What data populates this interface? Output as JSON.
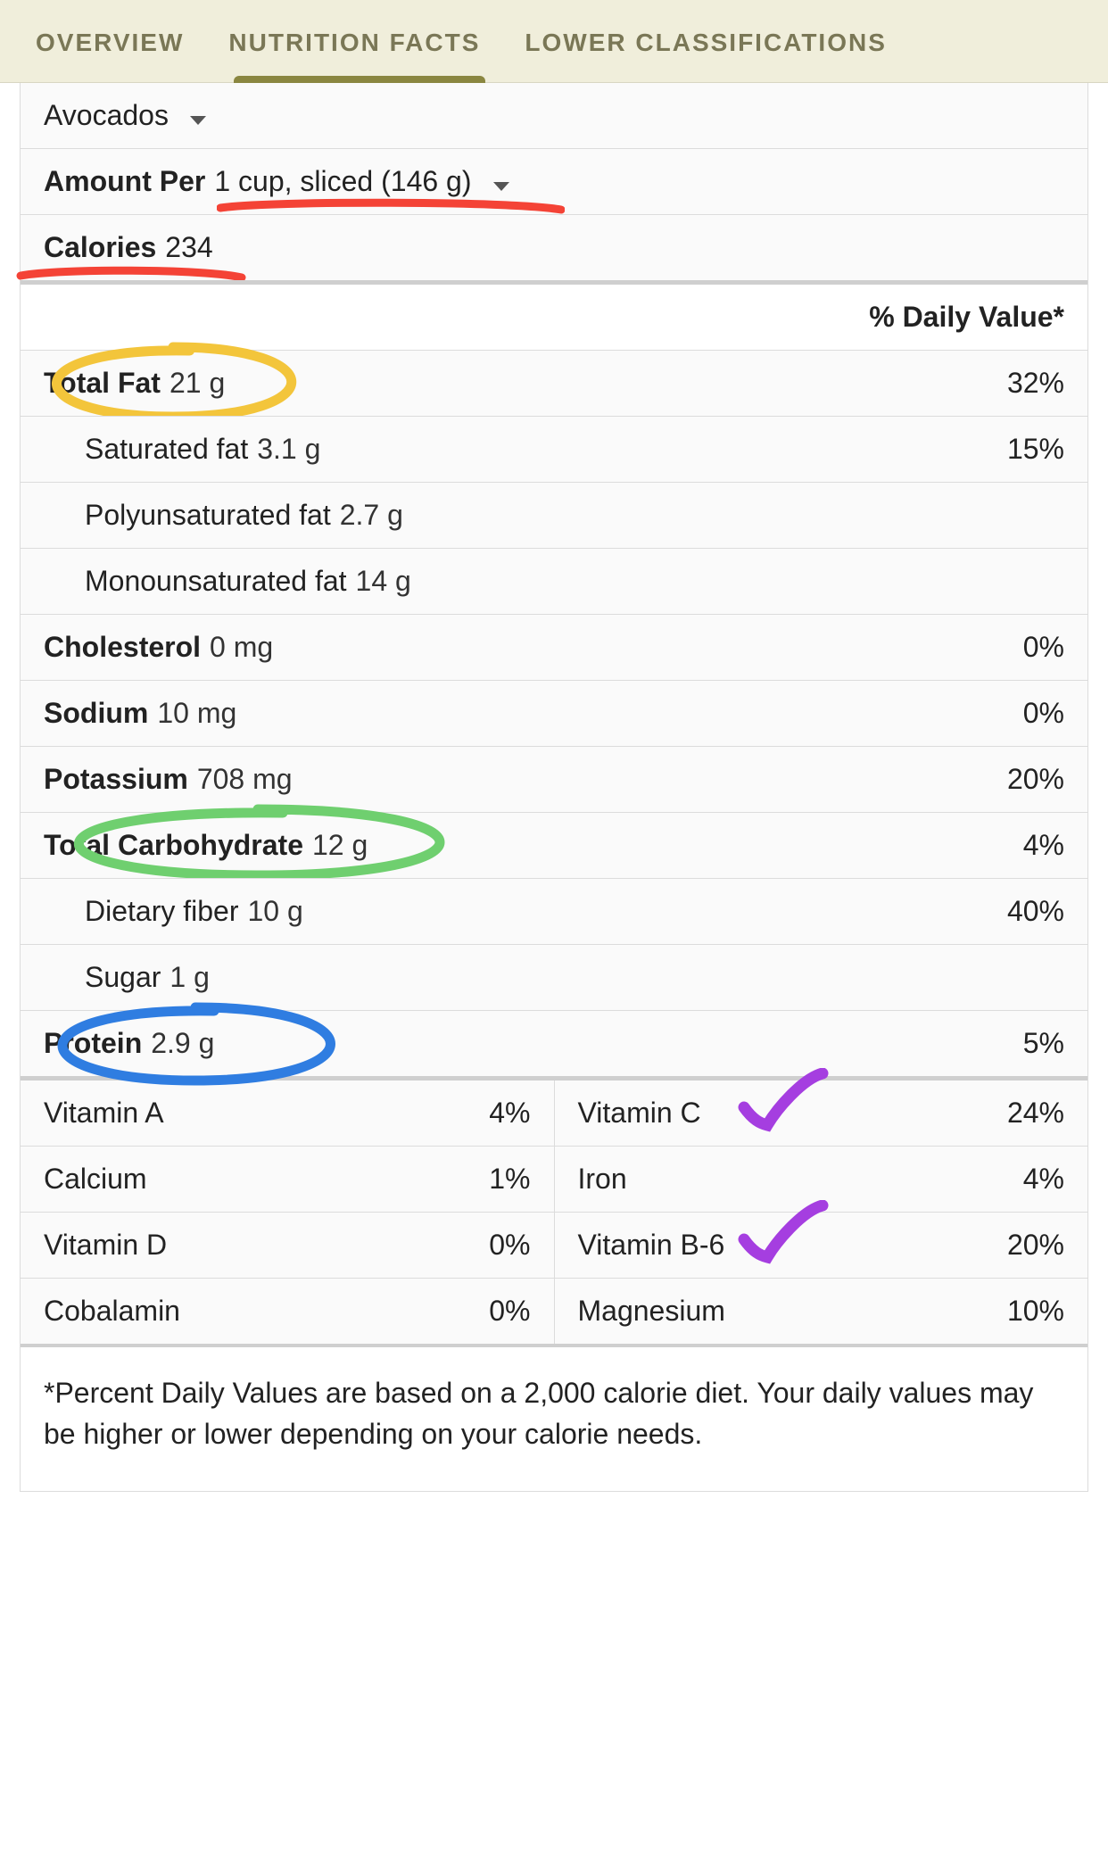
{
  "colors": {
    "tab_bg": "#f0eedb",
    "tab_text": "#7a7756",
    "tab_indicator": "#8a8640",
    "border": "#dcdcdc",
    "anno_red": "#f44336",
    "anno_yellow": "#f3c53b",
    "anno_green": "#6fcf6f",
    "anno_blue": "#2f7de1",
    "anno_purple": "#a53ee0"
  },
  "tabs": {
    "items": [
      {
        "label": "OVERVIEW",
        "active": false
      },
      {
        "label": "NUTRITION FACTS",
        "active": true
      },
      {
        "label": "LOWER CLASSIFICATIONS",
        "active": false
      }
    ]
  },
  "food": {
    "name": "Avocados"
  },
  "serving": {
    "prefix": "Amount Per",
    "text": "1 cup, sliced (146 g)"
  },
  "calories": {
    "label": "Calories",
    "value": "234"
  },
  "dv_header": "% Daily Value*",
  "nutrients": [
    {
      "label": "Total Fat",
      "value": "21 g",
      "pct": "32%",
      "bold": true,
      "indent": false,
      "anno": "circle-yellow"
    },
    {
      "label": "Saturated fat",
      "value": "3.1 g",
      "pct": "15%",
      "bold": false,
      "indent": true
    },
    {
      "label": "Polyunsaturated fat",
      "value": "2.7 g",
      "pct": "",
      "bold": false,
      "indent": true
    },
    {
      "label": "Monounsaturated fat",
      "value": "14 g",
      "pct": "",
      "bold": false,
      "indent": true
    },
    {
      "label": "Cholesterol",
      "value": "0 mg",
      "pct": "0%",
      "bold": true,
      "indent": false
    },
    {
      "label": "Sodium",
      "value": "10 mg",
      "pct": "0%",
      "bold": true,
      "indent": false
    },
    {
      "label": "Potassium",
      "value": "708 mg",
      "pct": "20%",
      "bold": true,
      "indent": false
    },
    {
      "label": "Total Carbohydrate",
      "value": "12 g",
      "pct": "4%",
      "bold": true,
      "indent": false,
      "anno": "circle-green"
    },
    {
      "label": "Dietary fiber",
      "value": "10 g",
      "pct": "40%",
      "bold": false,
      "indent": true
    },
    {
      "label": "Sugar",
      "value": "1 g",
      "pct": "",
      "bold": false,
      "indent": true
    },
    {
      "label": "Protein",
      "value": "2.9 g",
      "pct": "5%",
      "bold": true,
      "indent": false,
      "anno": "circle-blue"
    }
  ],
  "vitamins": [
    [
      {
        "label": "Vitamin A",
        "pct": "4%"
      },
      {
        "label": "Vitamin C",
        "pct": "24%",
        "anno": "check-purple"
      }
    ],
    [
      {
        "label": "Calcium",
        "pct": "1%"
      },
      {
        "label": "Iron",
        "pct": "4%"
      }
    ],
    [
      {
        "label": "Vitamin D",
        "pct": "0%"
      },
      {
        "label": "Vitamin B-6",
        "pct": "20%",
        "anno": "check-purple"
      }
    ],
    [
      {
        "label": "Cobalamin",
        "pct": "0%"
      },
      {
        "label": "Magnesium",
        "pct": "10%"
      }
    ]
  ],
  "footnote": "*Percent Daily Values are based on a 2,000 calorie diet. Your daily values may be higher or lower depending on your calorie needs."
}
